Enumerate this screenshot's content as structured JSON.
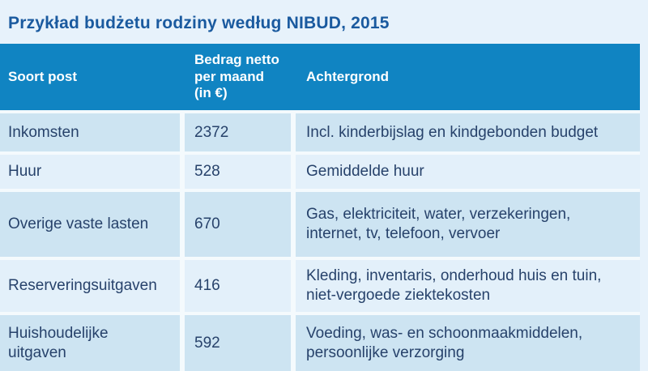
{
  "title": "Przykład budżetu rodziny według NIBUD, 2015",
  "table": {
    "columns": {
      "soort_post": "Soort post",
      "bedrag": "Bedrag netto\nper maand\n(in €)",
      "achtergrond": "Achtergrond"
    },
    "rows": [
      {
        "post": "Inkomsten",
        "bedrag": "2372",
        "achtergrond": "Incl. kinderbijslag en kindgebonden budget"
      },
      {
        "post": "Huur",
        "bedrag": "528",
        "achtergrond": "Gemiddelde huur"
      },
      {
        "post": "Overige vaste lasten",
        "bedrag": "670",
        "achtergrond": "Gas, elektriciteit, water, verzekeringen,\ninternet, tv, telefoon, vervoer"
      },
      {
        "post": "Reserveringsuitgaven",
        "bedrag": "416",
        "achtergrond": "Kleding, inventaris, onderhoud huis en tuin,\nniet-vergoede ziektekosten"
      },
      {
        "post": "Huishoudelijke\nuitgaven",
        "bedrag": "592",
        "achtergrond": "Voeding, was- en schoonmaakmiddelen,\npersoonlijke verzorging"
      }
    ]
  },
  "colors": {
    "page_background": "#e7f2fb",
    "title_text": "#1a5a9f",
    "header_background": "#1084c2",
    "header_text": "#ffffff",
    "row_shade_dark": "#cde4f2",
    "row_shade_light": "#e3f0fa",
    "separator": "#f4fafd",
    "body_text": "#27426b"
  },
  "chart_data": {
    "type": "table",
    "title": "Przykład budżetu rodziny według NIBUD, 2015",
    "columns": [
      "Soort post",
      "Bedrag netto per maand (in €)",
      "Achtergrond"
    ],
    "rows": [
      [
        "Inkomsten",
        2372,
        "Incl. kinderbijslag en kindgebonden budget"
      ],
      [
        "Huur",
        528,
        "Gemiddelde huur"
      ],
      [
        "Overige vaste lasten",
        670,
        "Gas, elektriciteit, water, verzekeringen, internet, tv, telefoon, vervoer"
      ],
      [
        "Reserveringsuitgaven",
        416,
        "Kleding, inventaris, onderhoud huis en tuin, niet-vergoede ziektekosten"
      ],
      [
        "Huishoudelijke uitgaven",
        592,
        "Voeding, was- en schoonmaakmiddelen, persoonlijke verzorging"
      ]
    ]
  }
}
